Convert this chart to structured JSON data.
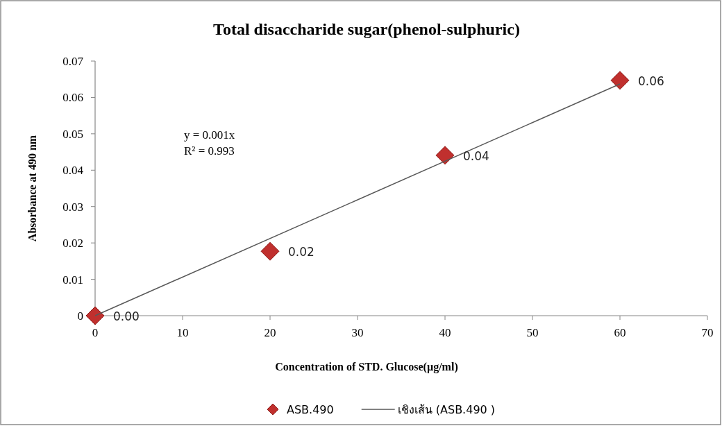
{
  "chart_data": {
    "type": "scatter",
    "title": "Total disaccharide sugar(phenol-sulphuric)",
    "xlabel": "Concentration of STD. Glucose(µg/ml)",
    "ylabel": "Absorbance at 490 nm",
    "series": [
      {
        "name": "ASB.490",
        "color": "#c0302e",
        "marker": "diamond",
        "x": [
          0,
          20,
          40,
          60
        ],
        "values": [
          0,
          0.0177,
          0.0441,
          0.0647
        ],
        "value_labels": [
          "0.00",
          "0.02",
          "0.04",
          "0.06"
        ]
      },
      {
        "name": "เชิงเส้น (ASB.490 )",
        "type": "line",
        "color": "#595959",
        "marker": "none",
        "line_style": "solid",
        "x": [
          0,
          60
        ],
        "values": [
          0,
          0.0637
        ]
      }
    ],
    "xlim": [
      0,
      70
    ],
    "xticks": [
      0,
      10,
      20,
      30,
      40,
      50,
      60,
      70
    ],
    "ylim": [
      0,
      0.07
    ],
    "yticks": [
      {
        "value": 0,
        "label": "0"
      },
      0.01,
      0.02,
      0.03,
      0.04,
      0.05,
      0.06,
      0.07
    ],
    "annotations": [
      "y = 0.001x",
      "R² = 0.993"
    ],
    "legend": "bottom",
    "grid": false
  }
}
